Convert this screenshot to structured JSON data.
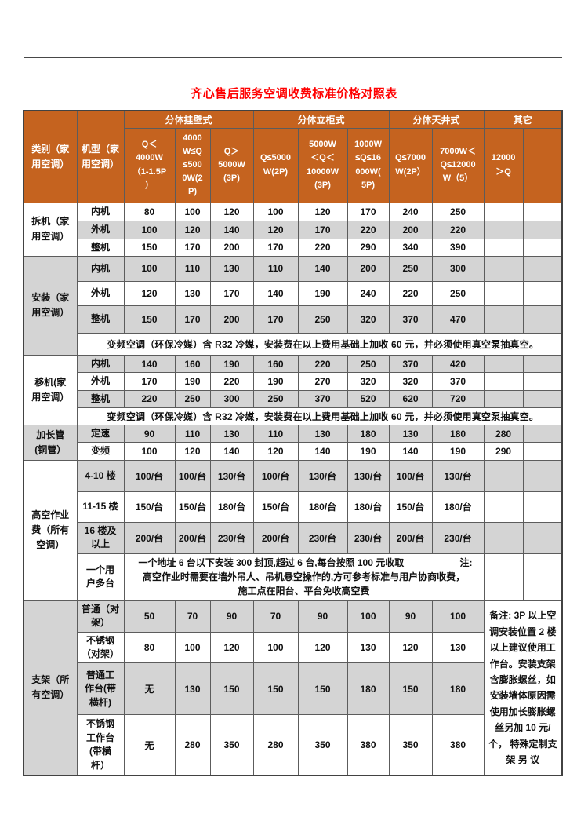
{
  "page": {
    "title": "齐心售后服务空调收费标准价格对照表"
  },
  "colors": {
    "title": "#FF0000",
    "header_bg": "#C5631F",
    "header_text": "#FFFFFF",
    "stripe": "#D4D4D4",
    "border": "#5C5C5C",
    "text": "#111111"
  },
  "table": {
    "header": {
      "category": "类别（家\n用空调）",
      "model": "机型（家\n用空调）",
      "groups": [
        {
          "label": "分体挂壁式",
          "cols": 3
        },
        {
          "label": "分体立柜式",
          "cols": 3
        },
        {
          "label": "分体天井式",
          "cols": 2
        },
        {
          "label": "其它",
          "cols": 2
        }
      ],
      "subcols": [
        "Q＜\n4000W\n（1-1.5P\n）",
        "4000\nW≤Q\n≤500\n0W(2\nP)",
        "Q＞\n5000W\n(3P)",
        "Q≤5000\nW(2P)",
        "5000W\n＜Q＜\n10000W\n(3P)",
        "1000W\n≤Q≤16\n000W(\n5P)",
        "Q≤7000\nW(2P）",
        "7000W＜\nQ≤12000\nW（5）",
        "12000\n＞Q",
        ""
      ]
    },
    "sections": [
      {
        "category": "拆机（家\n用空调）",
        "rows": [
          {
            "type": "data",
            "label": "内机",
            "values": [
              "80",
              "100",
              "120",
              "100",
              "120",
              "170",
              "240",
              "250",
              "",
              ""
            ]
          },
          {
            "type": "data",
            "label": "外机",
            "values": [
              "100",
              "120",
              "140",
              "120",
              "170",
              "220",
              "200",
              "220",
              "",
              ""
            ]
          },
          {
            "type": "data",
            "label": "整机",
            "values": [
              "150",
              "170",
              "200",
              "170",
              "220",
              "290",
              "340",
              "390",
              "",
              ""
            ]
          }
        ]
      },
      {
        "category": "安装（家\n用空调）",
        "rows": [
          {
            "type": "data",
            "label": "内机",
            "values": [
              "100",
              "110",
              "130",
              "110",
              "140",
              "200",
              "250",
              "300",
              "",
              ""
            ]
          },
          {
            "type": "data",
            "label": "外机",
            "values": [
              "120",
              "130",
              "170",
              "140",
              "190",
              "240",
              "220",
              "250",
              "",
              ""
            ]
          },
          {
            "type": "data",
            "label": "整机",
            "values": [
              "150",
              "170",
              "200",
              "170",
              "250",
              "320",
              "370",
              "470",
              "",
              ""
            ]
          },
          {
            "type": "note",
            "text": "变频空调（环保冷媒）含 R32 冷媒，安装费在以上费用基础上加收 60 元，并必须使用真空泵抽真空。"
          }
        ]
      },
      {
        "category": "移机(家\n用空调）",
        "rows": [
          {
            "type": "data",
            "label": "内机",
            "values": [
              "140",
              "160",
              "190",
              "160",
              "220",
              "250",
              "370",
              "420",
              "",
              ""
            ]
          },
          {
            "type": "data",
            "label": "外机",
            "values": [
              "170",
              "190",
              "220",
              "190",
              "270",
              "320",
              "320",
              "370",
              "",
              ""
            ]
          },
          {
            "type": "data",
            "label": "整机",
            "values": [
              "220",
              "250",
              "300",
              "250",
              "370",
              "520",
              "620",
              "720",
              "",
              ""
            ]
          },
          {
            "type": "note",
            "text": "变频空调（环保冷媒）含 R32 冷媒，安装费在以上费用基础上加收 60 元，并必须使用真空泵抽真空。"
          }
        ]
      },
      {
        "category": "加长管\n(铜管）",
        "rows": [
          {
            "type": "data",
            "label": "定速",
            "values": [
              "90",
              "110",
              "130",
              "110",
              "130",
              "180",
              "130",
              "180",
              "280",
              ""
            ]
          },
          {
            "type": "data",
            "label": "变频",
            "values": [
              "100",
              "120",
              "140",
              "120",
              "140",
              "190",
              "140",
              "190",
              "290",
              ""
            ]
          }
        ]
      },
      {
        "category": "高空作业\n费（所有\n空调）",
        "rows": [
          {
            "type": "data",
            "label": "4-10 楼",
            "values": [
              "100/台",
              "100/台",
              "130/台",
              "100/台",
              "130/台",
              "130/台",
              "100/台",
              "130/台",
              "",
              ""
            ]
          },
          {
            "type": "data",
            "label": "11-15 楼",
            "values": [
              "150/台",
              "150/台",
              "180/台",
              "150/台",
              "180/台",
              "180/台",
              "150/台",
              "180/台",
              "",
              ""
            ]
          },
          {
            "type": "data",
            "label": "16 楼及\n以上",
            "values": [
              "200/台",
              "200/台",
              "230/台",
              "200/台",
              "230/台",
              "230/台",
              "200/台",
              "230/台",
              "",
              ""
            ]
          },
          {
            "type": "labelnote",
            "label": "一个用\n户多台",
            "lines": [
              "一个地址 6 台以下安装 300 封顶,超过 6 台,每台按照 100 元收取",
              "高空作业时需要在墙外吊人、吊机悬空操作的,方可参考标准与用户协商收费，",
              "施工点在阳台、平台免收高空费"
            ],
            "side_note": "注:"
          }
        ]
      },
      {
        "category": "支架（所\n有空调）",
        "rows": [
          {
            "type": "data",
            "label": "普通（对\n架）",
            "values": [
              "50",
              "70",
              "90",
              "70",
              "90",
              "100",
              "90",
              "100"
            ],
            "remark_start": true
          },
          {
            "type": "data",
            "label": "不锈钢\n（对架）",
            "values": [
              "80",
              "100",
              "120",
              "100",
              "120",
              "130",
              "120",
              "130"
            ]
          },
          {
            "type": "data",
            "label": "普通工\n作台(带\n横杆)",
            "values": [
              "无",
              "130",
              "150",
              "150",
              "150",
              "180",
              "150",
              "180"
            ]
          },
          {
            "type": "data",
            "label": "不锈钢\n工作台\n(带横\n杆）",
            "values": [
              "无",
              "280",
              "350",
              "280",
              "350",
              "380",
              "350",
              "380"
            ]
          }
        ]
      }
    ],
    "remark": "备注: 3P 以上空 调安装位置 2 楼 以上建议使用工 作台。安装支架 含膨胀螺丝，如 安装墙体原因需 使用加长膨胀螺 丝另加 10 元/个， 特殊定制支架 另 议"
  }
}
